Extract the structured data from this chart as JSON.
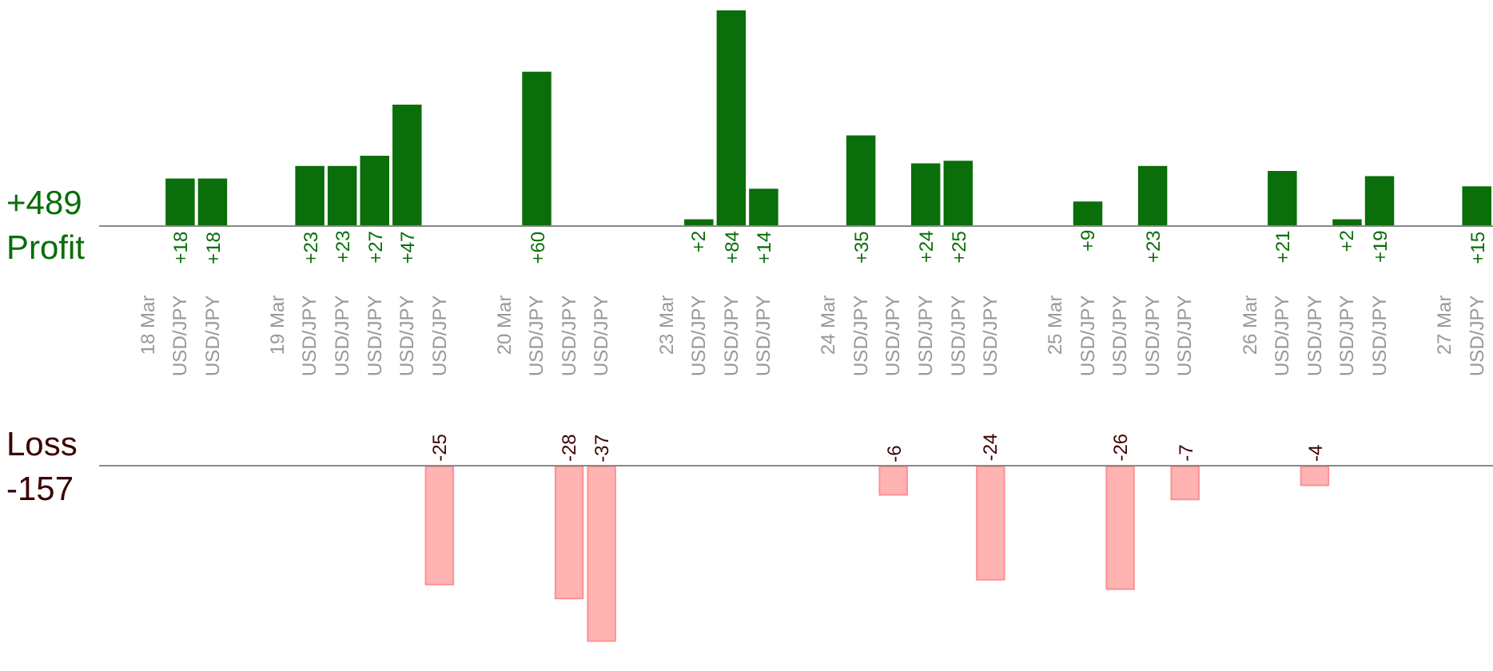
{
  "chart_data": [
    {
      "type": "bar",
      "annotations": [
        "+489",
        "Profit"
      ],
      "categories": [
        null,
        "18 Mar",
        "USD/JPY",
        "USD/JPY",
        null,
        "19 Mar",
        "USD/JPY",
        "USD/JPY",
        "USD/JPY",
        "USD/JPY",
        "USD/JPY",
        null,
        "20 Mar",
        "USD/JPY",
        "USD/JPY",
        "USD/JPY",
        null,
        "23 Mar",
        "USD/JPY",
        "USD/JPY",
        "USD/JPY",
        null,
        "24 Mar",
        "USD/JPY",
        "USD/JPY",
        "USD/JPY",
        "USD/JPY",
        "USD/JPY",
        null,
        "25 Mar",
        "USD/JPY",
        "USD/JPY",
        "USD/JPY",
        "USD/JPY",
        null,
        "26 Mar",
        "USD/JPY",
        "USD/JPY",
        "USD/JPY",
        "USD/JPY",
        null,
        "27 Mar",
        "USD/JPY"
      ],
      "series": [
        {
          "color": "#0a6e0a",
          "values": [
            null,
            null,
            18,
            18,
            null,
            null,
            23,
            23,
            27,
            47,
            null,
            null,
            null,
            60,
            null,
            null,
            null,
            null,
            2,
            84,
            14,
            null,
            null,
            35,
            null,
            24,
            25,
            null,
            null,
            null,
            9,
            null,
            23,
            null,
            null,
            null,
            21,
            null,
            2,
            19,
            null,
            null,
            15
          ],
          "value_labels": [
            null,
            null,
            "+18",
            "+18",
            null,
            null,
            "+23",
            "+23",
            "+27",
            "+47",
            null,
            null,
            null,
            "+60",
            null,
            null,
            null,
            null,
            "+2",
            "+84",
            "+14",
            null,
            null,
            "+35",
            null,
            "+24",
            "+25",
            null,
            null,
            null,
            "+9",
            null,
            "+23",
            null,
            null,
            null,
            "+21",
            null,
            "+2",
            "+19",
            null,
            null,
            "+15"
          ]
        }
      ],
      "tick_labels": "x"
    },
    {
      "type": "bar",
      "annotations": [
        "Loss",
        "-157"
      ],
      "categories": [
        null,
        null,
        null,
        null,
        null,
        null,
        null,
        null,
        null,
        null,
        null,
        null,
        null,
        null,
        null,
        null,
        null,
        null,
        null,
        null,
        null,
        null,
        null,
        null,
        null,
        null,
        null,
        null,
        null,
        null,
        null,
        null,
        null,
        null,
        null,
        null,
        null,
        null,
        null,
        null,
        null,
        null,
        null
      ],
      "series": [
        {
          "color": "#ffb3b3",
          "values": [
            null,
            null,
            null,
            null,
            null,
            null,
            null,
            null,
            null,
            null,
            -25,
            null,
            null,
            null,
            -28,
            -37,
            null,
            null,
            null,
            null,
            null,
            null,
            null,
            null,
            -6,
            null,
            null,
            -24,
            null,
            null,
            null,
            -26,
            null,
            -7,
            null,
            null,
            null,
            -4,
            null,
            null,
            null,
            null,
            null
          ],
          "value_labels": [
            null,
            null,
            null,
            null,
            null,
            null,
            null,
            null,
            null,
            null,
            "-25",
            null,
            null,
            null,
            "-28",
            "-37",
            null,
            null,
            null,
            null,
            null,
            null,
            null,
            null,
            "-6",
            null,
            null,
            "-24",
            null,
            null,
            null,
            "-26",
            null,
            "-7",
            null,
            null,
            null,
            "-4",
            null,
            null,
            null,
            null,
            null
          ]
        }
      ],
      "tick_labels": false
    }
  ]
}
